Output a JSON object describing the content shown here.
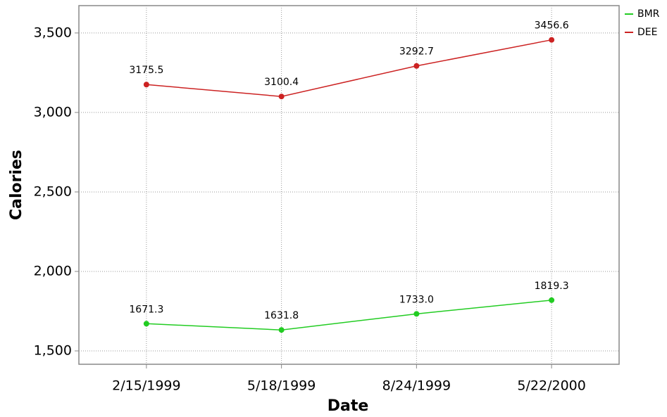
{
  "chart_data": {
    "type": "line",
    "x_label": "Date",
    "y_label": "Calories",
    "categories": [
      "2/15/1999",
      "5/18/1999",
      "8/24/1999",
      "5/22/2000"
    ],
    "series": [
      {
        "name": "BMR",
        "color": "#22cc22",
        "values": [
          1671.3,
          1631.8,
          1733.0,
          1819.3
        ],
        "value_labels": [
          "1671.3",
          "1631.8",
          "1733.0",
          "1819.3"
        ]
      },
      {
        "name": "DEE",
        "color": "#cc2222",
        "values": [
          3175.5,
          3100.4,
          3292.7,
          3456.6
        ],
        "value_labels": [
          "3175.5",
          "3100.4",
          "3292.7",
          "3456.6"
        ]
      }
    ],
    "ylim": [
      1416,
      3672
    ],
    "yticks": [
      {
        "value": 1500,
        "label": "1,500"
      },
      {
        "value": 2000,
        "label": "2,000"
      },
      {
        "value": 2500,
        "label": "2,500"
      },
      {
        "value": 3000,
        "label": "3,000"
      },
      {
        "value": 3500,
        "label": "3,500"
      }
    ],
    "grid": true,
    "legend": "right"
  }
}
